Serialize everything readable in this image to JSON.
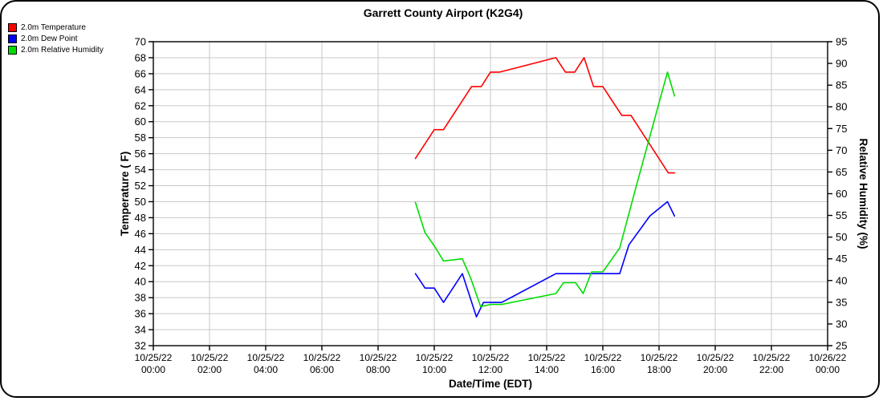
{
  "window": {
    "background": "#ffffff",
    "border_color": "#000000"
  },
  "chart_data": {
    "type": "line",
    "title": "Garrett County Airport (K2G4)",
    "x_axis": {
      "label": "Date/Time (EDT)",
      "min_hours": 0,
      "max_hours": 24,
      "major_step_hours": 2,
      "ticks": [
        {
          "hour": 0,
          "date": "10/25/22",
          "time": "00:00"
        },
        {
          "hour": 2,
          "date": "10/25/22",
          "time": "02:00"
        },
        {
          "hour": 4,
          "date": "10/25/22",
          "time": "04:00"
        },
        {
          "hour": 6,
          "date": "10/25/22",
          "time": "06:00"
        },
        {
          "hour": 8,
          "date": "10/25/22",
          "time": "08:00"
        },
        {
          "hour": 10,
          "date": "10/25/22",
          "time": "10:00"
        },
        {
          "hour": 12,
          "date": "10/25/22",
          "time": "12:00"
        },
        {
          "hour": 14,
          "date": "10/25/22",
          "time": "14:00"
        },
        {
          "hour": 16,
          "date": "10/25/22",
          "time": "16:00"
        },
        {
          "hour": 18,
          "date": "10/25/22",
          "time": "18:00"
        },
        {
          "hour": 20,
          "date": "10/25/22",
          "time": "20:00"
        },
        {
          "hour": 22,
          "date": "10/25/22",
          "time": "22:00"
        },
        {
          "hour": 24,
          "date": "10/26/22",
          "time": "00:00"
        }
      ]
    },
    "y_left": {
      "label": "Temperature ( F)",
      "min": 32,
      "max": 70,
      "step": 2,
      "ticks": [
        32,
        34,
        36,
        38,
        40,
        42,
        44,
        46,
        48,
        50,
        52,
        54,
        56,
        58,
        60,
        62,
        64,
        66,
        68,
        70
      ]
    },
    "y_right": {
      "label": "Relative Humidity (%)",
      "min": 25,
      "max": 95,
      "step": 5,
      "ticks": [
        25,
        30,
        35,
        40,
        45,
        50,
        55,
        60,
        65,
        70,
        75,
        80,
        85,
        90,
        95
      ]
    },
    "grid": {
      "show": true,
      "color": "#c9c9c9",
      "vertical_every_hours": 2,
      "horizontal_every_left_units": 2
    },
    "legend_position": "top-left",
    "series": [
      {
        "name": "2.0m Temperature",
        "color": "#ff0000",
        "axis": "left",
        "points": [
          [
            9.33,
            55.4
          ],
          [
            10.0,
            59.0
          ],
          [
            10.33,
            59.0
          ],
          [
            11.33,
            64.4
          ],
          [
            11.67,
            64.4
          ],
          [
            12.0,
            66.2
          ],
          [
            12.33,
            66.2
          ],
          [
            14.33,
            68.0
          ],
          [
            14.67,
            66.2
          ],
          [
            15.0,
            66.2
          ],
          [
            15.33,
            68.0
          ],
          [
            15.67,
            64.4
          ],
          [
            16.0,
            64.4
          ],
          [
            16.67,
            60.8
          ],
          [
            17.0,
            60.8
          ],
          [
            18.33,
            53.6
          ],
          [
            18.55,
            53.6
          ]
        ]
      },
      {
        "name": "2.0m Dew Point",
        "color": "#0000ff",
        "axis": "left",
        "points": [
          [
            9.33,
            41.0
          ],
          [
            9.67,
            39.2
          ],
          [
            10.0,
            39.2
          ],
          [
            10.33,
            37.4
          ],
          [
            11.0,
            41.0
          ],
          [
            11.5,
            35.6
          ],
          [
            11.75,
            37.4
          ],
          [
            12.4,
            37.4
          ],
          [
            14.33,
            41.0
          ],
          [
            16.6,
            41.0
          ],
          [
            16.93,
            44.6
          ],
          [
            17.67,
            48.2
          ],
          [
            18.3,
            50.0
          ],
          [
            18.55,
            48.2
          ]
        ]
      },
      {
        "name": "2.0m Relative Humidity",
        "color": "#00dd00",
        "axis": "right",
        "points": [
          [
            9.33,
            58.0
          ],
          [
            9.67,
            51.0
          ],
          [
            10.0,
            48.0
          ],
          [
            10.33,
            44.5
          ],
          [
            11.0,
            45.0
          ],
          [
            11.3,
            40.5
          ],
          [
            11.65,
            34.0
          ],
          [
            12.0,
            34.5
          ],
          [
            12.4,
            34.5
          ],
          [
            14.33,
            37.0
          ],
          [
            14.6,
            39.5
          ],
          [
            15.03,
            39.5
          ],
          [
            15.3,
            37.0
          ],
          [
            15.6,
            42.0
          ],
          [
            16.0,
            42.0
          ],
          [
            16.6,
            47.5
          ],
          [
            17.2,
            62.0
          ],
          [
            18.3,
            88.0
          ],
          [
            18.55,
            82.5
          ]
        ]
      }
    ]
  }
}
